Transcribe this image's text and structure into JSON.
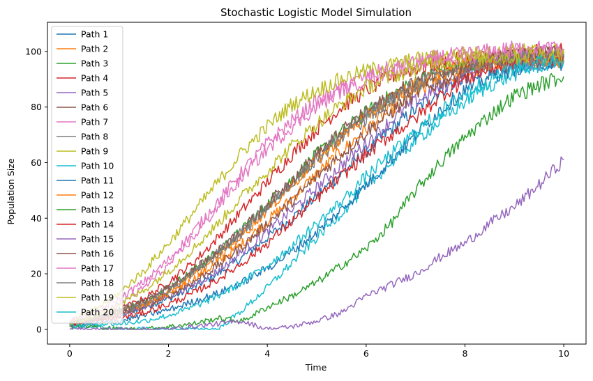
{
  "chart_data": {
    "type": "line",
    "title": "Stochastic Logistic Model Simulation",
    "xlabel": "Time",
    "ylabel": "Population Size",
    "xlim": [
      -0.45,
      10.45
    ],
    "ylim": [
      -5.3,
      110.5
    ],
    "xticks": [
      0,
      2,
      4,
      6,
      8,
      10
    ],
    "yticks": [
      0,
      20,
      40,
      60,
      80,
      100
    ],
    "grid": false,
    "legend": "upper left",
    "note": "Each series is an approximate stochastic path; values are estimated control points read off the chart.",
    "series": [
      {
        "name": "Path 1",
        "color": "#1f77b4",
        "x": [
          0,
          0.5,
          1,
          1.5,
          2,
          2.5,
          3,
          3.5,
          4,
          4.5,
          5,
          5.5,
          6,
          6.5,
          7,
          7.5,
          8,
          8.5,
          9,
          9.5,
          10
        ],
        "y": [
          2,
          3,
          5,
          8,
          11,
          15,
          20,
          26,
          33,
          40,
          48,
          56,
          64,
          72,
          79,
          86,
          91,
          94,
          96,
          97,
          97
        ]
      },
      {
        "name": "Path 2",
        "color": "#ff7f0e",
        "x": [
          0,
          0.5,
          1,
          1.5,
          2,
          2.5,
          3,
          3.5,
          4,
          4.5,
          5,
          5.5,
          6,
          6.5,
          7,
          7.5,
          8,
          8.5,
          9,
          9.5,
          10
        ],
        "y": [
          2,
          4,
          6,
          9,
          13,
          18,
          24,
          31,
          39,
          47,
          56,
          64,
          72,
          79,
          85,
          89,
          92,
          95,
          96,
          97,
          97
        ]
      },
      {
        "name": "Path 3",
        "color": "#2ca02c",
        "x": [
          0,
          0.5,
          1,
          1.5,
          2,
          2.5,
          3,
          3.5,
          4,
          4.5,
          5,
          5.5,
          6,
          6.5,
          7,
          7.5,
          8,
          8.5,
          9,
          9.5,
          10
        ],
        "y": [
          2,
          4,
          7,
          10,
          15,
          21,
          28,
          36,
          45,
          54,
          63,
          71,
          78,
          84,
          89,
          93,
          95,
          97,
          98,
          98,
          99
        ]
      },
      {
        "name": "Path 4",
        "color": "#d62728",
        "x": [
          0,
          0.5,
          1,
          1.5,
          2,
          2.5,
          3,
          3.5,
          4,
          4.5,
          5,
          5.5,
          6,
          6.5,
          7,
          7.5,
          8,
          8.5,
          9,
          9.5,
          10
        ],
        "y": [
          2,
          4,
          7,
          11,
          17,
          24,
          33,
          43,
          53,
          63,
          72,
          80,
          86,
          91,
          94,
          96,
          97,
          98,
          99,
          100,
          100
        ]
      },
      {
        "name": "Path 5",
        "color": "#9467bd",
        "x": [
          0,
          0.5,
          1,
          1.5,
          2,
          2.5,
          3,
          3.5,
          4,
          4.5,
          5,
          5.5,
          6,
          6.5,
          7,
          7.5,
          8,
          8.5,
          9,
          9.5,
          10
        ],
        "y": [
          2,
          3,
          5,
          8,
          12,
          16,
          21,
          28,
          35,
          43,
          51,
          59,
          67,
          75,
          82,
          87,
          91,
          94,
          95,
          96,
          96
        ]
      },
      {
        "name": "Path 6",
        "color": "#8c564b",
        "x": [
          0,
          0.5,
          1,
          1.5,
          2,
          2.5,
          3,
          3.5,
          4,
          4.5,
          5,
          5.5,
          6,
          6.5,
          7,
          7.5,
          8,
          8.5,
          9,
          9.5,
          10
        ],
        "y": [
          2,
          3,
          5,
          8,
          12,
          17,
          23,
          30,
          38,
          46,
          55,
          63,
          71,
          78,
          85,
          89,
          93,
          96,
          98,
          99,
          100
        ]
      },
      {
        "name": "Path 7",
        "color": "#e377c2",
        "x": [
          0,
          0.5,
          1,
          1.5,
          2,
          2.5,
          3,
          3.5,
          4,
          4.5,
          5,
          5.5,
          6,
          6.5,
          7,
          7.5,
          8,
          8.5,
          9,
          9.5,
          10
        ],
        "y": [
          3,
          6,
          11,
          17,
          25,
          35,
          46,
          57,
          67,
          75,
          82,
          87,
          91,
          94,
          96,
          98,
          99,
          100,
          101,
          101,
          101
        ]
      },
      {
        "name": "Path 8",
        "color": "#7f7f7f",
        "x": [
          0,
          0.5,
          1,
          1.5,
          2,
          2.5,
          3,
          3.5,
          4,
          4.5,
          5,
          5.5,
          6,
          6.5,
          7,
          7.5,
          8,
          8.5,
          9,
          9.5,
          10
        ],
        "y": [
          2,
          4,
          7,
          10,
          15,
          21,
          28,
          36,
          44,
          53,
          61,
          69,
          76,
          82,
          87,
          91,
          94,
          96,
          97,
          98,
          98
        ]
      },
      {
        "name": "Path 9",
        "color": "#bcbd22",
        "x": [
          0,
          0.5,
          1,
          1.5,
          2,
          2.5,
          3,
          3.5,
          4,
          4.5,
          5,
          5.5,
          6,
          6.5,
          7,
          7.5,
          8,
          8.5,
          9,
          9.5,
          10
        ],
        "y": [
          3,
          7,
          13,
          21,
          31,
          42,
          53,
          64,
          73,
          81,
          86,
          90,
          93,
          95,
          97,
          98,
          99,
          99,
          100,
          100,
          100
        ]
      },
      {
        "name": "Path 10",
        "color": "#17becf",
        "x": [
          0,
          0.5,
          1,
          1.5,
          2,
          2.5,
          3,
          3.5,
          4,
          4.5,
          5,
          5.5,
          6,
          6.5,
          7,
          7.5,
          8,
          8.5,
          9,
          9.5,
          10
        ],
        "y": [
          1,
          1,
          0,
          0,
          0,
          0,
          0,
          7,
          15,
          24,
          33,
          42,
          51,
          60,
          68,
          75,
          82,
          88,
          92,
          95,
          97
        ]
      },
      {
        "name": "Path 11",
        "color": "#1f77b4",
        "x": [
          0,
          0.5,
          1,
          1.5,
          2,
          2.5,
          3,
          3.5,
          4,
          4.5,
          5,
          5.5,
          6,
          6.5,
          7,
          7.5,
          8,
          8.5,
          9,
          9.5,
          10
        ],
        "y": [
          1,
          2,
          3,
          5,
          7,
          10,
          13,
          17,
          22,
          28,
          35,
          43,
          52,
          61,
          70,
          79,
          86,
          91,
          94,
          96,
          96
        ]
      },
      {
        "name": "Path 12",
        "color": "#ff7f0e",
        "x": [
          0,
          0.5,
          1,
          1.5,
          2,
          2.5,
          3,
          3.5,
          4,
          4.5,
          5,
          5.5,
          6,
          6.5,
          7,
          7.5,
          8,
          8.5,
          9,
          9.5,
          10
        ],
        "y": [
          2,
          4,
          6,
          9,
          13,
          19,
          26,
          34,
          43,
          52,
          61,
          69,
          77,
          83,
          88,
          92,
          95,
          96,
          97,
          97,
          98
        ]
      },
      {
        "name": "Path 13",
        "color": "#2ca02c",
        "x": [
          0,
          0.5,
          1,
          1.5,
          2,
          2.5,
          3,
          3.5,
          4,
          4.5,
          5,
          5.5,
          6,
          6.5,
          7,
          7.5,
          8,
          8.5,
          9,
          9.5,
          10
        ],
        "y": [
          1,
          1,
          0,
          0,
          1,
          2,
          4,
          3,
          8,
          12,
          17,
          23,
          29,
          38,
          50,
          60,
          69,
          77,
          84,
          88,
          91
        ]
      },
      {
        "name": "Path 14",
        "color": "#d62728",
        "x": [
          0,
          0.5,
          1,
          1.5,
          2,
          2.5,
          3,
          3.5,
          4,
          4.5,
          5,
          5.5,
          6,
          6.5,
          7,
          7.5,
          8,
          8.5,
          9,
          9.5,
          10
        ],
        "y": [
          2,
          3,
          4,
          6,
          9,
          13,
          18,
          24,
          31,
          39,
          47,
          55,
          63,
          70,
          76,
          84,
          90,
          94,
          96,
          97,
          98
        ]
      },
      {
        "name": "Path 15",
        "color": "#9467bd",
        "x": [
          0,
          0.5,
          1,
          1.5,
          2,
          2.5,
          3,
          3.5,
          4,
          4.5,
          5,
          5.5,
          6,
          6.5,
          7,
          7.5,
          8,
          8.5,
          9,
          9.5,
          10
        ],
        "y": [
          0,
          0,
          0,
          0,
          0,
          1,
          2,
          3,
          0,
          1,
          3,
          6,
          12,
          16,
          20,
          26,
          31,
          38,
          44,
          52,
          61
        ]
      },
      {
        "name": "Path 16",
        "color": "#8c564b",
        "x": [
          0,
          0.5,
          1,
          1.5,
          2,
          2.5,
          3,
          3.5,
          4,
          4.5,
          5,
          5.5,
          6,
          6.5,
          7,
          7.5,
          8,
          8.5,
          9,
          9.5,
          10
        ],
        "y": [
          2,
          4,
          6,
          10,
          15,
          21,
          28,
          36,
          45,
          54,
          63,
          71,
          78,
          84,
          89,
          93,
          95,
          97,
          98,
          99,
          99
        ]
      },
      {
        "name": "Path 17",
        "color": "#e377c2",
        "x": [
          0,
          0.5,
          1,
          1.5,
          2,
          2.5,
          3,
          3.5,
          4,
          4.5,
          5,
          5.5,
          6,
          6.5,
          7,
          7.5,
          8,
          8.5,
          9,
          9.5,
          10
        ],
        "y": [
          3,
          5,
          9,
          15,
          23,
          33,
          44,
          55,
          65,
          73,
          80,
          86,
          90,
          93,
          95,
          97,
          98,
          99,
          100,
          100,
          100
        ]
      },
      {
        "name": "Path 18",
        "color": "#7f7f7f",
        "x": [
          0,
          0.5,
          1,
          1.5,
          2,
          2.5,
          3,
          3.5,
          4,
          4.5,
          5,
          5.5,
          6,
          6.5,
          7,
          7.5,
          8,
          8.5,
          9,
          9.5,
          10
        ],
        "y": [
          2,
          4,
          6,
          9,
          14,
          20,
          27,
          35,
          44,
          53,
          62,
          70,
          77,
          83,
          88,
          92,
          94,
          96,
          97,
          98,
          98
        ]
      },
      {
        "name": "Path 19",
        "color": "#bcbd22",
        "x": [
          0,
          0.5,
          1,
          1.5,
          2,
          2.5,
          3,
          3.5,
          4,
          4.5,
          5,
          5.5,
          6,
          6.5,
          7,
          7.5,
          8,
          8.5,
          9,
          9.5,
          10
        ],
        "y": [
          2,
          5,
          9,
          14,
          21,
          29,
          38,
          48,
          57,
          66,
          74,
          81,
          87,
          91,
          94,
          96,
          97,
          98,
          98,
          99,
          99
        ]
      },
      {
        "name": "Path 20",
        "color": "#17becf",
        "x": [
          0,
          0.5,
          1,
          1.5,
          2,
          2.5,
          3,
          3.5,
          4,
          4.5,
          5,
          5.5,
          6,
          6.5,
          7,
          7.5,
          8,
          8.5,
          9,
          9.5,
          10
        ],
        "y": [
          1,
          2,
          2,
          3,
          5,
          8,
          12,
          17,
          23,
          30,
          38,
          46,
          55,
          63,
          71,
          78,
          85,
          90,
          94,
          96,
          97
        ]
      }
    ]
  }
}
